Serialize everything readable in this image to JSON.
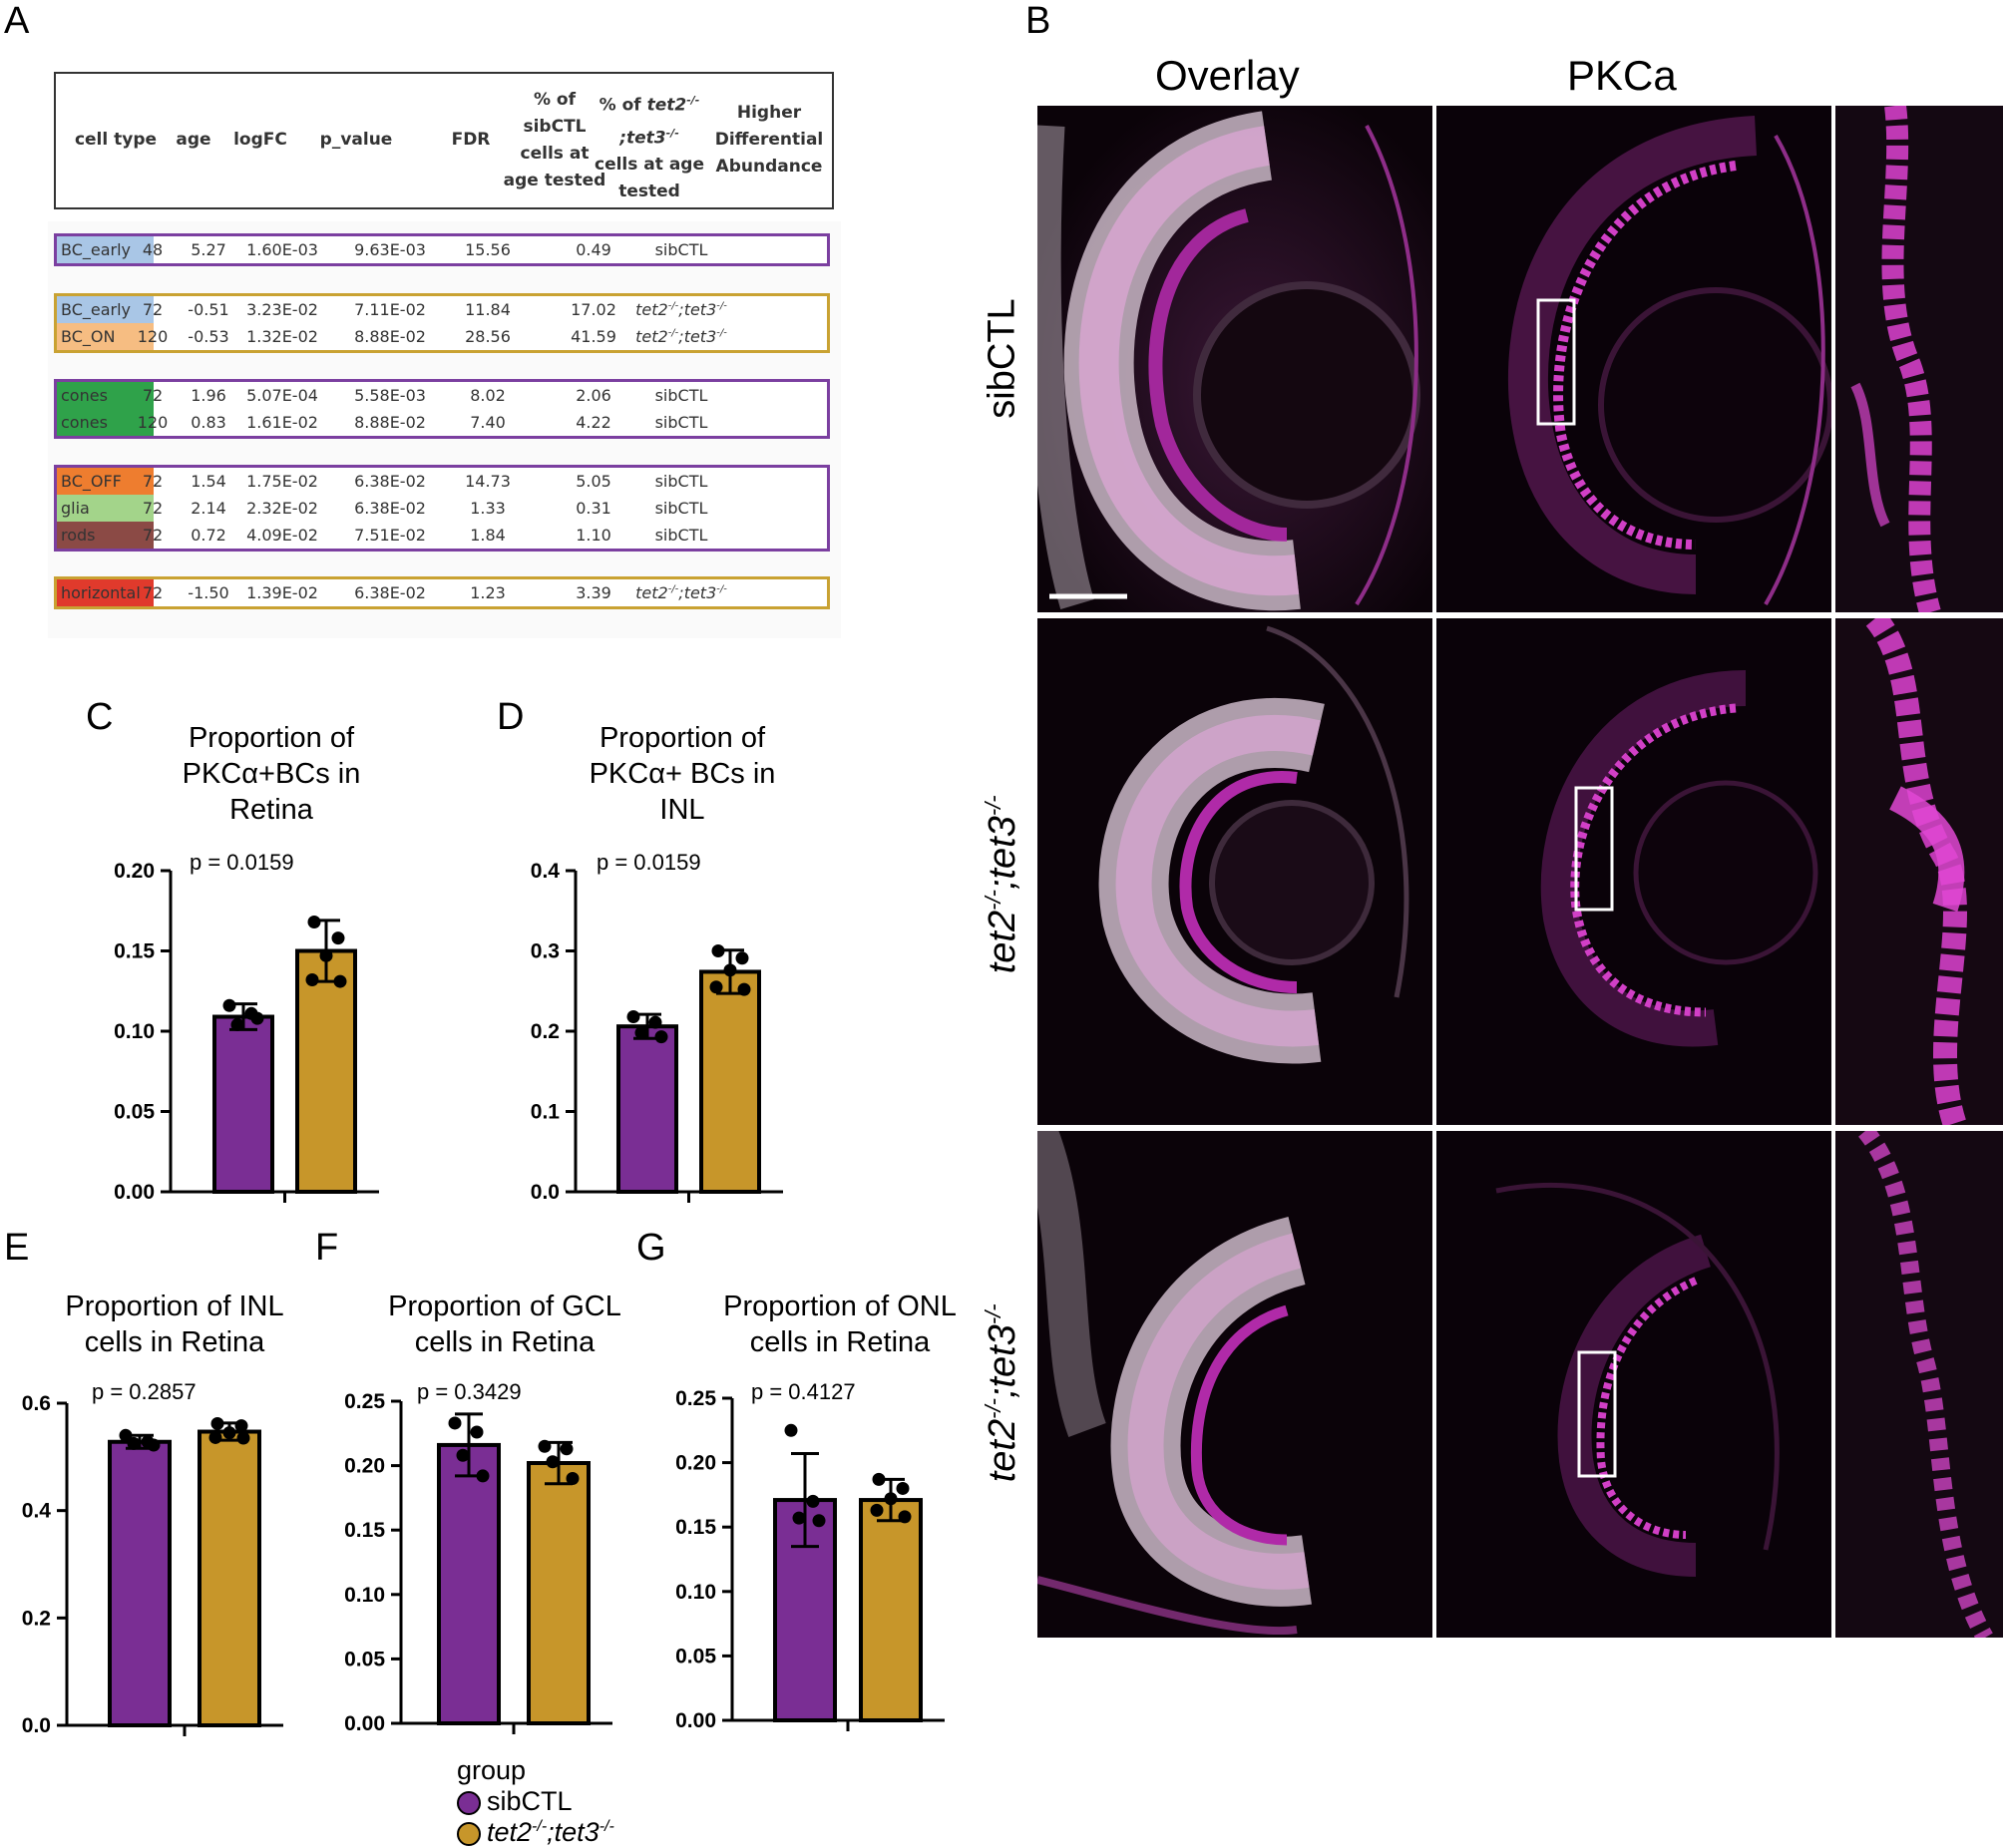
{
  "panels": {
    "a": "A",
    "b": "B",
    "c": "C",
    "d": "D",
    "e": "E",
    "f": "F",
    "g": "G"
  },
  "table": {
    "headers": [
      "cell type",
      "age",
      "logFC",
      "p_value",
      "FDR",
      "% of sibCTL cells at age tested",
      "% of tet2-/-;tet3-/- cells at age tested",
      "Higher Differential Abundance"
    ],
    "header_lines": {
      "celltype": [
        "cell type"
      ],
      "age": [
        "age"
      ],
      "logfc": [
        "logFC"
      ],
      "pval": [
        "p_value"
      ],
      "fdr": [
        "FDR"
      ],
      "sib": [
        "% of",
        "sibCTL",
        "cells at",
        "age tested"
      ],
      "tet_pre": "% of ",
      "tet_gene": "tet2",
      "tet_sup1": "-/-",
      "tet_line2": ";tet3",
      "tet_sup2": "-/-",
      "tet_rest": [
        "cells at age",
        "tested"
      ],
      "higher": [
        "Higher",
        "Differential",
        "Abundance"
      ]
    },
    "groups": [
      {
        "border": "#7b3fa0",
        "rows": [
          {
            "cell_type": "BC_early",
            "color": "#a9c6e6",
            "age": "48",
            "logfc": "5.27",
            "p": "1.60E-03",
            "fdr": "9.63E-03",
            "sib": "15.56",
            "tet": "0.49",
            "higher": "sibCTL"
          }
        ]
      },
      {
        "border": "#c9a232",
        "rows": [
          {
            "cell_type": "BC_early",
            "color": "#a9c6e6",
            "age": "72",
            "logfc": "-0.51",
            "p": "3.23E-02",
            "fdr": "7.11E-02",
            "sib": "11.84",
            "tet": "17.02",
            "higher": "tet2 -/- ;tet3 -/-"
          },
          {
            "cell_type": "BC_ON",
            "color": "#f6bd82",
            "age": "120",
            "logfc": "-0.53",
            "p": "1.32E-02",
            "fdr": "8.88E-02",
            "sib": "28.56",
            "tet": "41.59",
            "higher": "tet2 -/- ;tet3 -/-"
          }
        ]
      },
      {
        "border": "#7b3fa0",
        "rows": [
          {
            "cell_type": "cones",
            "color": "#2fa24a",
            "age": "72",
            "logfc": "1.96",
            "p": "5.07E-04",
            "fdr": "5.58E-03",
            "sib": "8.02",
            "tet": "2.06",
            "higher": "sibCTL"
          },
          {
            "cell_type": "cones",
            "color": "#2fa24a",
            "age": "120",
            "logfc": "0.83",
            "p": "1.61E-02",
            "fdr": "8.88E-02",
            "sib": "7.40",
            "tet": "4.22",
            "higher": "sibCTL"
          }
        ]
      },
      {
        "border": "#7b3fa0",
        "rows": [
          {
            "cell_type": "BC_OFF",
            "color": "#ee7d2f",
            "age": "72",
            "logfc": "1.54",
            "p": "1.75E-02",
            "fdr": "6.38E-02",
            "sib": "14.73",
            "tet": "5.05",
            "higher": "sibCTL"
          },
          {
            "cell_type": "glia",
            "color": "#a3d48a",
            "age": "72",
            "logfc": "2.14",
            "p": "2.32E-02",
            "fdr": "6.38E-02",
            "sib": "1.33",
            "tet": "0.31",
            "higher": "sibCTL"
          },
          {
            "cell_type": "rods",
            "color": "#8b4a45",
            "age": "72",
            "logfc": "0.72",
            "p": "4.09E-02",
            "fdr": "7.51E-02",
            "sib": "1.84",
            "tet": "1.10",
            "higher": "sibCTL"
          }
        ]
      },
      {
        "border": "#c9a232",
        "rows": [
          {
            "cell_type": "horizontal",
            "color": "#e03a2c",
            "age": "72",
            "logfc": "-1.50",
            "p": "1.39E-02",
            "fdr": "6.38E-02",
            "sib": "1.23",
            "tet": "3.39",
            "higher": "tet2 -/- ;tet3 -/-"
          }
        ]
      }
    ]
  },
  "microscopy": {
    "col_overlay": "Overlay",
    "col_pkca": "PKCa",
    "row_sib": "sibCTL",
    "row_tet_a": "tet2-/-;tet3-/-",
    "row_tet_b": "tet2-/-;tet3-/-"
  },
  "colors": {
    "sib": "#7a2e94",
    "tet": "#c7962a",
    "magenta": "#c23fb8"
  },
  "chart_data": [
    {
      "id": "C",
      "type": "bar",
      "title": [
        "Proportion of",
        "PKCα+BCs  in",
        "Retina"
      ],
      "ptext": "p = 0.0159",
      "categories": [
        "sibCTL",
        "tet2-/-;tet3-/-"
      ],
      "values": [
        0.109,
        0.15
      ],
      "err": [
        0.008,
        0.019
      ],
      "points": [
        [
          0.116,
          0.111,
          0.104,
          0.108
        ],
        [
          0.168,
          0.158,
          0.147,
          0.132,
          0.131
        ]
      ],
      "ylim": [
        0,
        0.2
      ],
      "ticks": [
        "0.00",
        "0.05",
        "0.10",
        "0.15",
        "0.20"
      ]
    },
    {
      "id": "D",
      "type": "bar",
      "title": [
        "Proportion of",
        "PKCα+ BCs  in",
        "INL"
      ],
      "ptext": "p = 0.0159",
      "categories": [
        "sibCTL",
        "tet2-/-;tet3-/-"
      ],
      "values": [
        0.206,
        0.274
      ],
      "err": [
        0.015,
        0.027
      ],
      "points": [
        [
          0.218,
          0.211,
          0.198,
          0.193
        ],
        [
          0.3,
          0.291,
          0.276,
          0.255,
          0.252
        ]
      ],
      "ylim": [
        0,
        0.4
      ],
      "ticks": [
        "0.0",
        "0.1",
        "0.2",
        "0.3",
        "0.4"
      ]
    },
    {
      "id": "E",
      "type": "bar",
      "title": [
        "Proportion of INL",
        "cells in Retina"
      ],
      "ptext": "p = 0.2857",
      "categories": [
        "sibCTL",
        "tet2-/-;tet3-/-"
      ],
      "values": [
        0.528,
        0.547
      ],
      "err": [
        0.012,
        0.016
      ],
      "points": [
        [
          0.54,
          0.528,
          0.525,
          0.522
        ],
        [
          0.562,
          0.558,
          0.545,
          0.536,
          0.535
        ]
      ],
      "ylim": [
        0,
        0.6
      ],
      "ticks": [
        "0.0",
        "0.2",
        "0.4",
        "0.6"
      ]
    },
    {
      "id": "F",
      "type": "bar",
      "title": [
        "Proportion of GCL",
        "cells in Retina"
      ],
      "ptext": "p = 0.3429",
      "categories": [
        "sibCTL",
        "tet2-/-;tet3-/-"
      ],
      "values": [
        0.216,
        0.202
      ],
      "err": [
        0.024,
        0.016
      ],
      "points": [
        [
          0.233,
          0.226,
          0.208,
          0.192
        ],
        [
          0.215,
          0.213,
          0.203,
          0.19
        ]
      ],
      "ylim": [
        0,
        0.25
      ],
      "ticks": [
        "0.00",
        "0.05",
        "0.10",
        "0.15",
        "0.20",
        "0.25"
      ]
    },
    {
      "id": "G",
      "type": "bar",
      "title": [
        "Proportion of ONL",
        "cells in Retina"
      ],
      "ptext": "p = 0.4127",
      "categories": [
        "sibCTL",
        "tet2-/-;tet3-/-"
      ],
      "values": [
        0.171,
        0.171
      ],
      "err": [
        0.036,
        0.016
      ],
      "points": [
        [
          0.225,
          0.17,
          0.157,
          0.155
        ],
        [
          0.187,
          0.18,
          0.172,
          0.163,
          0.158
        ]
      ],
      "ylim": [
        0,
        0.25
      ],
      "ticks": [
        "0.00",
        "0.05",
        "0.10",
        "0.15",
        "0.20",
        "0.25"
      ]
    }
  ],
  "legend": {
    "title": "group",
    "items": [
      "sibCTL",
      "tet2-/-;tet3-/-"
    ]
  }
}
